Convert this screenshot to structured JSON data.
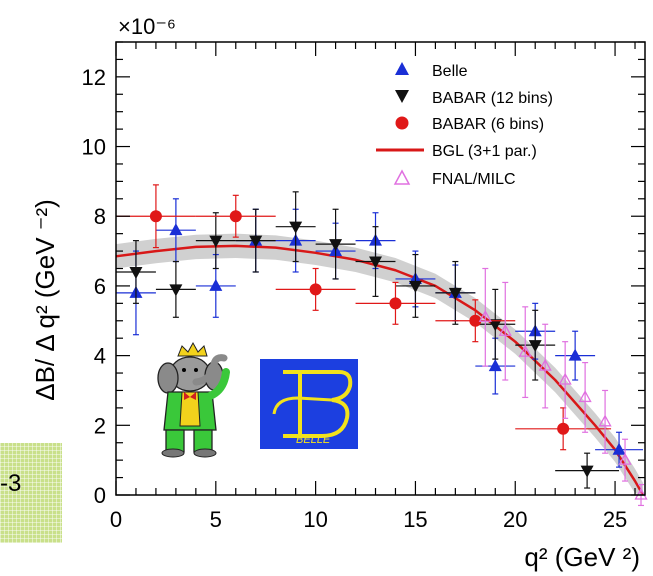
{
  "badge": {
    "text": "-3"
  },
  "colors": {
    "belle": "#1a2fd6",
    "babar12": "#111111",
    "babar6": "#e01818",
    "bgl": "#d81818",
    "fnal": "#e070e0",
    "band": "#c8c8c8"
  },
  "logos": {
    "belle_text": "BELLE",
    "belle_icon": "belle-logo",
    "babar_icon": "babar-elephant-logo"
  },
  "chart_data": {
    "type": "scatter",
    "xlabel": "q² (GeV ²)",
    "ylabel": "ΔB/ Δ q² (GeV ⁻²)",
    "y_multiplier": "×10⁻⁶",
    "xlim": [
      0,
      26.5
    ],
    "ylim": [
      0,
      13
    ],
    "x_ticks": [
      0,
      5,
      10,
      15,
      20,
      25
    ],
    "y_ticks": [
      0,
      2,
      4,
      6,
      8,
      10,
      12
    ],
    "grid": false,
    "legend_position": "top-right",
    "legend": [
      "Belle",
      "BABAR (12 bins)",
      "BABAR (6 bins)",
      "BGL (3+1 par.)",
      "FNAL/MILC"
    ],
    "series": [
      {
        "name": "Belle",
        "marker": "triangle-up",
        "points": [
          {
            "x": 1,
            "y": 5.8,
            "xerr": 1,
            "yerr": 1.2
          },
          {
            "x": 3,
            "y": 7.6,
            "xerr": 1,
            "yerr": 0.9
          },
          {
            "x": 5,
            "y": 6.0,
            "xerr": 1,
            "yerr": 0.9
          },
          {
            "x": 7,
            "y": 7.3,
            "xerr": 1,
            "yerr": 0.9
          },
          {
            "x": 9,
            "y": 7.3,
            "xerr": 1,
            "yerr": 0.9
          },
          {
            "x": 11,
            "y": 7.0,
            "xerr": 1,
            "yerr": 0.8
          },
          {
            "x": 13,
            "y": 7.3,
            "xerr": 1,
            "yerr": 0.8
          },
          {
            "x": 15,
            "y": 6.2,
            "xerr": 1,
            "yerr": 0.8
          },
          {
            "x": 17,
            "y": 5.8,
            "xerr": 1,
            "yerr": 0.8
          },
          {
            "x": 19,
            "y": 3.7,
            "xerr": 1,
            "yerr": 0.8
          },
          {
            "x": 21,
            "y": 4.7,
            "xerr": 1,
            "yerr": 0.8
          },
          {
            "x": 23,
            "y": 4.0,
            "xerr": 1,
            "yerr": 0.7
          },
          {
            "x": 25.2,
            "y": 1.3,
            "xerr": 1.2,
            "yerr": 0.5
          }
        ]
      },
      {
        "name": "BABAR (12 bins)",
        "marker": "triangle-down",
        "points": [
          {
            "x": 1,
            "y": 6.4,
            "xerr": 1,
            "yerr": 0.9
          },
          {
            "x": 3,
            "y": 5.9,
            "xerr": 1,
            "yerr": 0.8
          },
          {
            "x": 5,
            "y": 7.3,
            "xerr": 1,
            "yerr": 0.8
          },
          {
            "x": 7,
            "y": 7.3,
            "xerr": 1,
            "yerr": 0.9
          },
          {
            "x": 9,
            "y": 7.7,
            "xerr": 1,
            "yerr": 1.0
          },
          {
            "x": 11,
            "y": 7.2,
            "xerr": 1,
            "yerr": 1.0
          },
          {
            "x": 13,
            "y": 6.7,
            "xerr": 1,
            "yerr": 1.0
          },
          {
            "x": 15,
            "y": 6.0,
            "xerr": 1,
            "yerr": 0.9
          },
          {
            "x": 17,
            "y": 5.8,
            "xerr": 1,
            "yerr": 0.9
          },
          {
            "x": 19,
            "y": 4.9,
            "xerr": 1,
            "yerr": 1.0
          },
          {
            "x": 21,
            "y": 4.3,
            "xerr": 1,
            "yerr": 1.0
          },
          {
            "x": 23.6,
            "y": 0.7,
            "xerr": 1.6,
            "yerr": 0.5
          }
        ]
      },
      {
        "name": "BABAR (6 bins)",
        "marker": "circle",
        "points": [
          {
            "x": 2,
            "y": 8.0,
            "xerr": 2,
            "yerr": 0.9
          },
          {
            "x": 6,
            "y": 8.0,
            "xerr": 2,
            "yerr": 0.6
          },
          {
            "x": 10,
            "y": 5.9,
            "xerr": 2,
            "yerr": 0.6
          },
          {
            "x": 14,
            "y": 5.5,
            "xerr": 2,
            "yerr": 0.6
          },
          {
            "x": 18,
            "y": 5.0,
            "xerr": 2,
            "yerr": 0.6
          },
          {
            "x": 22.4,
            "y": 1.9,
            "xerr": 2.4,
            "yerr": 0.6
          }
        ]
      },
      {
        "name": "FNAL/MILC",
        "marker": "triangle-up-open",
        "points": [
          {
            "x": 18.5,
            "y": 5.1,
            "xerr": 0,
            "yerr": 1.4
          },
          {
            "x": 19.5,
            "y": 4.7,
            "xerr": 0,
            "yerr": 1.4
          },
          {
            "x": 20.5,
            "y": 4.1,
            "xerr": 0,
            "yerr": 1.3
          },
          {
            "x": 21.5,
            "y": 3.7,
            "xerr": 0,
            "yerr": 1.2
          },
          {
            "x": 22.5,
            "y": 3.3,
            "xerr": 0,
            "yerr": 1.1
          },
          {
            "x": 23.5,
            "y": 2.8,
            "xerr": 0,
            "yerr": 1.0
          },
          {
            "x": 24.5,
            "y": 2.1,
            "xerr": 0,
            "yerr": 0.9
          },
          {
            "x": 25.5,
            "y": 1.0,
            "xerr": 0,
            "yerr": 0.6
          },
          {
            "x": 26.3,
            "y": 0.0,
            "xerr": 0,
            "yerr": 0.3
          }
        ]
      }
    ],
    "fit": {
      "name": "BGL (3+1 par.)",
      "points": [
        [
          0,
          6.85
        ],
        [
          2,
          7.0
        ],
        [
          4,
          7.12
        ],
        [
          6,
          7.15
        ],
        [
          8,
          7.1
        ],
        [
          10,
          6.95
        ],
        [
          12,
          6.75
        ],
        [
          14,
          6.45
        ],
        [
          16,
          6.0
        ],
        [
          18,
          5.3
        ],
        [
          20,
          4.4
        ],
        [
          22,
          3.3
        ],
        [
          24,
          2.0
        ],
        [
          25,
          1.3
        ],
        [
          26,
          0.4
        ],
        [
          26.4,
          0.0
        ]
      ],
      "band": 0.35
    }
  }
}
